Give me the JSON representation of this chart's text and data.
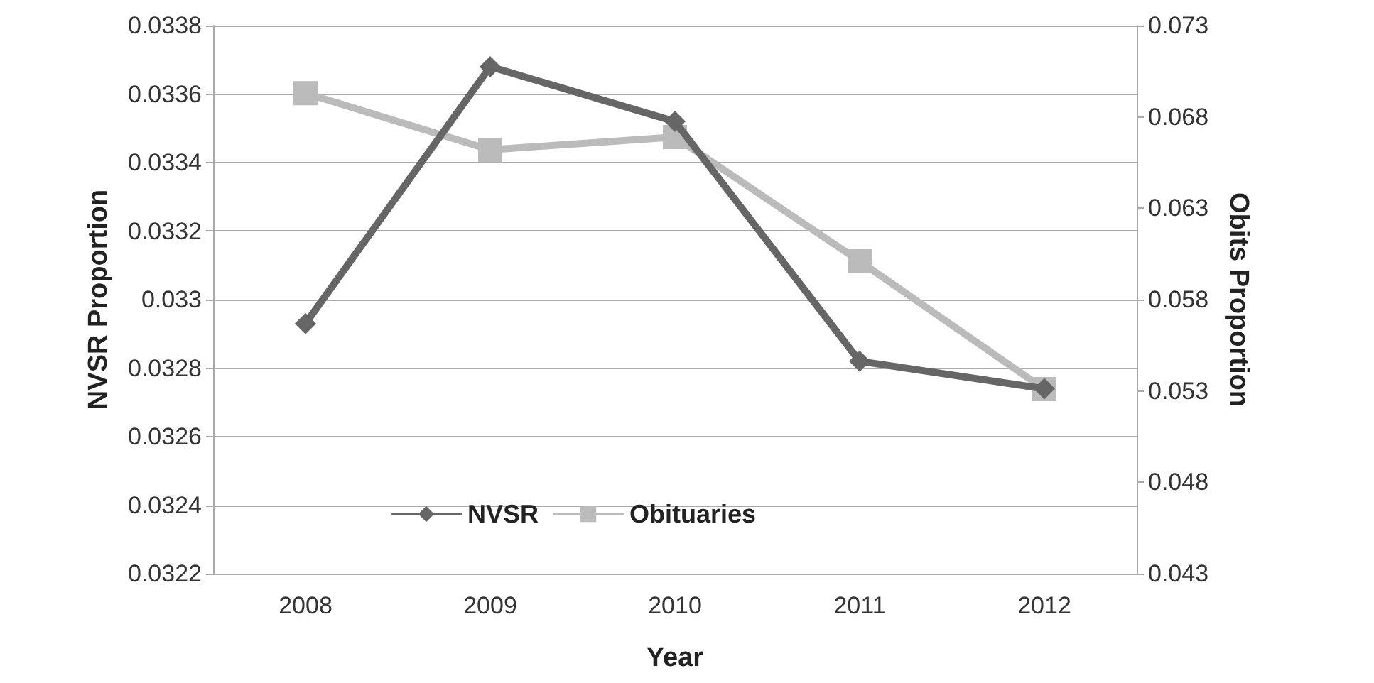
{
  "chart_data": {
    "type": "line",
    "xlabel": "Year",
    "ylabel": "NVSR Proportion",
    "y2label": "Obits Proportion",
    "categories": [
      "2008",
      "2009",
      "2010",
      "2011",
      "2012"
    ],
    "series": [
      {
        "name": "NVSR",
        "color": "#666666",
        "marker": "diamond",
        "values": [
          0.03293,
          0.03368,
          0.03352,
          0.03282,
          0.03274
        ]
      },
      {
        "name": "Obituaries",
        "color": "#bbbbbb",
        "marker": "square",
        "axis": "y2",
        "values": [
          0.0693,
          0.0662,
          0.0669,
          0.0601,
          0.0531
        ]
      }
    ],
    "ylim": [
      0.0322,
      0.0338
    ],
    "yticks": [
      0.0322,
      0.0324,
      0.0326,
      0.0328,
      0.033,
      0.0332,
      0.0334,
      0.0336,
      0.0338
    ],
    "y2lim": [
      0.043,
      0.073
    ],
    "y2ticks": [
      0.043,
      0.048,
      0.053,
      0.058,
      0.063,
      0.068,
      0.073
    ],
    "grid": "y",
    "legend": "bottom",
    "line_style": "solid"
  }
}
